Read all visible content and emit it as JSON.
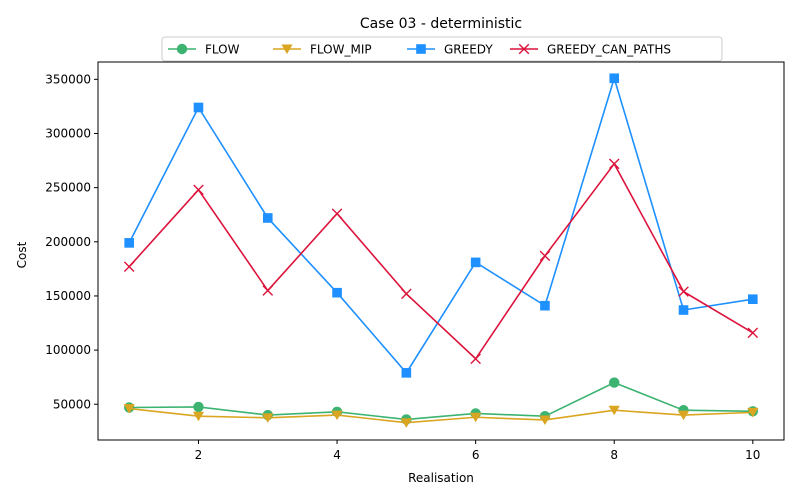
{
  "chart_data": {
    "type": "line",
    "title": "Case 03 - deterministic",
    "xlabel": "Realisation",
    "ylabel": "Cost",
    "x": [
      1,
      2,
      3,
      4,
      5,
      6,
      7,
      8,
      9,
      10
    ],
    "xlim": [
      0.55,
      10.45
    ],
    "ylim": [
      17000,
      366000
    ],
    "xticks": [
      2,
      4,
      6,
      8,
      10
    ],
    "yticks": [
      50000,
      100000,
      150000,
      200000,
      250000,
      300000,
      350000
    ],
    "grid": false,
    "legend_position": "top-center",
    "series": [
      {
        "name": "FLOW",
        "color": "#3cb371",
        "marker": "circle",
        "values": [
          47000,
          47500,
          40000,
          43000,
          36000,
          41500,
          39000,
          70000,
          44500,
          43500
        ]
      },
      {
        "name": "FLOW_MIP",
        "color": "#daa520",
        "marker": "triangle-down",
        "values": [
          46000,
          39000,
          37500,
          40000,
          33000,
          38000,
          35500,
          44500,
          40000,
          42500
        ]
      },
      {
        "name": "GREEDY",
        "color": "#1e90ff",
        "marker": "square",
        "values": [
          199000,
          324000,
          222000,
          153000,
          79000,
          181000,
          141000,
          351000,
          137000,
          147000
        ]
      },
      {
        "name": "GREEDY_CAN_PATHS",
        "color": "#dc143c",
        "marker": "x",
        "values": [
          177000,
          248000,
          155000,
          226000,
          152000,
          92000,
          187000,
          272000,
          154000,
          116000
        ]
      }
    ]
  }
}
